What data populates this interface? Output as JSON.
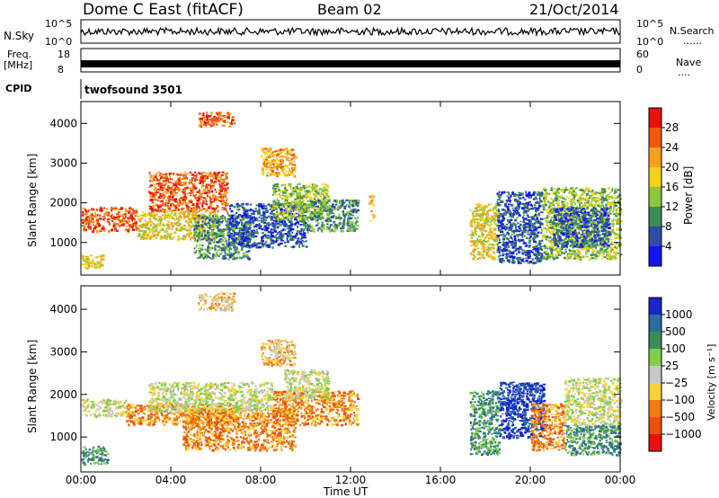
{
  "header": {
    "station": "Dome C East (fitACF)",
    "beam": "Beam 02",
    "date": "21/Oct/2014"
  },
  "top_panels": {
    "nsky_label": "N.Sky",
    "nsky_ticks": [
      "10^5",
      "10^0"
    ],
    "nsearch_label": "N.Search",
    "nsearch_ticks": [
      "10^5",
      "10^0"
    ],
    "freq_label_1": "Freq.",
    "freq_label_2": "[MHz]",
    "freq_ticks": [
      "18",
      "8"
    ],
    "nave_label": "Nave",
    "nave_ticks": [
      "60",
      "0"
    ],
    "cpid_label": "CPID",
    "cpid_value": "twofsound 3501",
    "dots": "......",
    "dots_short": "...."
  },
  "time_axis": {
    "label": "Time UT",
    "ticks": [
      "00:00",
      "04:00",
      "08:00",
      "12:00",
      "16:00",
      "20:00",
      "00:00"
    ]
  },
  "chart_data": [
    {
      "type": "heatmap",
      "title": "",
      "xlabel": "Time UT",
      "ylabel": "Slant Range [km]",
      "y_ticks": [
        "1000",
        "2000",
        "3000",
        "4000"
      ],
      "ylim": [
        180,
        4550
      ],
      "xlim_hours": [
        0,
        24
      ],
      "colorbar": {
        "label": "Power [dB]",
        "ticks": [
          "28",
          "24",
          "20",
          "16",
          "12",
          "8",
          "4"
        ],
        "colors": [
          "#e8120c",
          "#f05a0a",
          "#f7a020",
          "#f2d21a",
          "#8cc83c",
          "#3c8c5a",
          "#2c4ea8",
          "#1414f0"
        ]
      },
      "regions": [
        {
          "t0": 0.0,
          "t1": 2.5,
          "r0": 1300,
          "r1": 1900,
          "level": 1
        },
        {
          "t0": 0.0,
          "t1": 1.0,
          "r0": 350,
          "r1": 700,
          "level": 3
        },
        {
          "t0": 2.5,
          "t1": 6.0,
          "r0": 1100,
          "r1": 1800,
          "level": 3
        },
        {
          "t0": 5.0,
          "t1": 7.5,
          "r0": 600,
          "r1": 1700,
          "level": 5
        },
        {
          "t0": 6.5,
          "t1": 10.0,
          "r0": 900,
          "r1": 2000,
          "level": 6
        },
        {
          "t0": 8.5,
          "t1": 11.0,
          "r0": 1600,
          "r1": 2500,
          "level": 4
        },
        {
          "t0": 10.0,
          "t1": 12.3,
          "r0": 1300,
          "r1": 2100,
          "level": 5
        },
        {
          "t0": 3.0,
          "t1": 6.5,
          "r0": 1800,
          "r1": 2800,
          "level": 1
        },
        {
          "t0": 5.2,
          "t1": 6.8,
          "r0": 3950,
          "r1": 4300,
          "level": 1
        },
        {
          "t0": 8.0,
          "t1": 9.5,
          "r0": 2700,
          "r1": 3400,
          "level": 2
        },
        {
          "t0": 12.8,
          "t1": 13.0,
          "r0": 1500,
          "r1": 2200,
          "level": 2
        },
        {
          "t0": 17.3,
          "t1": 18.5,
          "r0": 600,
          "r1": 2000,
          "level": 3
        },
        {
          "t0": 18.5,
          "t1": 20.5,
          "r0": 500,
          "r1": 2300,
          "level": 6
        },
        {
          "t0": 20.5,
          "t1": 24.0,
          "r0": 600,
          "r1": 2400,
          "level": 4
        },
        {
          "t0": 21.0,
          "t1": 23.5,
          "r0": 900,
          "r1": 1900,
          "level": 6
        }
      ]
    },
    {
      "type": "heatmap",
      "title": "",
      "xlabel": "Time UT",
      "ylabel": "Slant Range [km]",
      "y_ticks": [
        "1000",
        "2000",
        "3000",
        "4000"
      ],
      "ylim": [
        180,
        4550
      ],
      "xlim_hours": [
        0,
        24
      ],
      "colorbar": {
        "label": "Velocity [m s⁻¹]",
        "ticks": [
          "1000",
          "500",
          "100",
          "25",
          "−25",
          "−100",
          "−500",
          "−1000"
        ],
        "colors": [
          "#1428c8",
          "#2d6aa0",
          "#3c8c5a",
          "#7fce4a",
          "#c8c8c8",
          "#f7d23c",
          "#f07d14",
          "#ea500f",
          "#e8120c"
        ]
      },
      "regions": [
        {
          "t0": 0.0,
          "t1": 1.2,
          "r0": 350,
          "r1": 800,
          "level": 2
        },
        {
          "t0": 0.0,
          "t1": 2.0,
          "r0": 1500,
          "r1": 1900,
          "level": 4
        },
        {
          "t0": 2.0,
          "t1": 7.0,
          "r0": 1300,
          "r1": 1800,
          "level": 6
        },
        {
          "t0": 4.5,
          "t1": 9.5,
          "r0": 700,
          "r1": 1700,
          "level": 6
        },
        {
          "t0": 3.0,
          "t1": 8.5,
          "r0": 1600,
          "r1": 2300,
          "level": 4
        },
        {
          "t0": 8.5,
          "t1": 12.3,
          "r0": 1300,
          "r1": 2100,
          "level": 6
        },
        {
          "t0": 9.0,
          "t1": 11.0,
          "r0": 1900,
          "r1": 2600,
          "level": 4
        },
        {
          "t0": 8.0,
          "t1": 9.5,
          "r0": 2700,
          "r1": 3300,
          "level": 5
        },
        {
          "t0": 5.2,
          "t1": 6.8,
          "r0": 4000,
          "r1": 4400,
          "level": 5
        },
        {
          "t0": 17.3,
          "t1": 18.6,
          "r0": 600,
          "r1": 2100,
          "level": 2
        },
        {
          "t0": 18.6,
          "t1": 20.6,
          "r0": 1000,
          "r1": 2300,
          "level": 0
        },
        {
          "t0": 20.0,
          "t1": 21.5,
          "r0": 700,
          "r1": 1800,
          "level": 6
        },
        {
          "t0": 21.5,
          "t1": 24.0,
          "r0": 600,
          "r1": 1300,
          "level": 2
        },
        {
          "t0": 21.5,
          "t1": 24.0,
          "r0": 1300,
          "r1": 2400,
          "level": 4
        }
      ]
    }
  ]
}
